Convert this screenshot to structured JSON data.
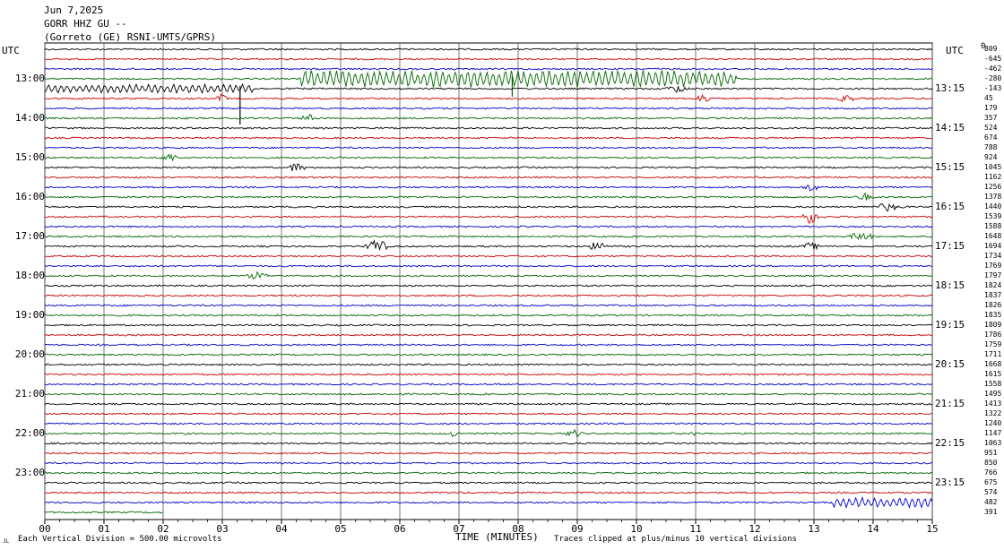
{
  "header": {
    "date": "Jun 7,2025",
    "station": "GORR HHZ GU --",
    "network": "(Gorreto (GE) RSNI-UMTS/GPRS)"
  },
  "utc_left": "UTC",
  "utc_right": "UTC",
  "footer": {
    "xlabel": "TIME (MINUTES)",
    "division": "Each Vertical Division =  500.00 microvolts",
    "clip_note": "Traces clipped at plus/minus 10 vertical divisions",
    "corner_mark": "JL"
  },
  "chart_data": {
    "type": "line",
    "xlabel": "TIME (MINUTES)",
    "xlim": [
      0,
      15
    ],
    "x_ticks": [
      "00",
      "01",
      "02",
      "03",
      "04",
      "05",
      "06",
      "07",
      "08",
      "09",
      "10",
      "11",
      "12",
      "13",
      "14",
      "15"
    ],
    "trace_colors": [
      "#000000",
      "#cc0000",
      "#0000cc",
      "#006600"
    ],
    "left_hour_labels": [
      "13:00",
      "14:00",
      "15:00",
      "16:00",
      "17:00",
      "18:00",
      "19:00",
      "20:00",
      "21:00",
      "22:00",
      "23:00"
    ],
    "right_hour_labels": [
      "13:15",
      "14:15",
      "15:15",
      "16:15",
      "17:15",
      "18:15",
      "19:15",
      "20:15",
      "21:15",
      "22:15",
      "23:15"
    ],
    "top_right_label": "0",
    "right_offsets": [
      "809",
      "-645",
      "-462",
      "-280",
      "-143",
      "45",
      "179",
      "357",
      "524",
      "674",
      "788",
      "924",
      "1045",
      "1162",
      "1256",
      "1378",
      "1440",
      "1539",
      "1588",
      "1648",
      "1694",
      "1734",
      "1769",
      "1797",
      "1824",
      "1837",
      "1826",
      "1835",
      "1809",
      "1786",
      "1759",
      "1711",
      "1668",
      "1615",
      "1558",
      "1495",
      "1413",
      "1322",
      "1240",
      "1147",
      "1063",
      "951",
      "850",
      "766",
      "675",
      "574",
      "482",
      "391"
    ],
    "events": [
      {
        "trace": 3,
        "start_min": 4.3,
        "end_min": 11.7,
        "amp": 10
      },
      {
        "trace": 4,
        "start_min": 0,
        "end_min": 3.5,
        "amp": 5
      },
      {
        "trace": 4,
        "start_min": 10.5,
        "end_min": 10.9,
        "amp": 5
      },
      {
        "trace": 5,
        "start_min": 2.9,
        "end_min": 3.1,
        "amp": 6
      },
      {
        "trace": 5,
        "start_min": 11.0,
        "end_min": 11.3,
        "amp": 6
      },
      {
        "trace": 5,
        "start_min": 13.4,
        "end_min": 13.7,
        "amp": 5
      },
      {
        "trace": 7,
        "start_min": 4.3,
        "end_min": 4.6,
        "amp": 5
      },
      {
        "trace": 11,
        "start_min": 1.9,
        "end_min": 2.3,
        "amp": 5
      },
      {
        "trace": 12,
        "start_min": 4.1,
        "end_min": 4.4,
        "amp": 6
      },
      {
        "trace": 14,
        "start_min": 12.8,
        "end_min": 13.1,
        "amp": 5
      },
      {
        "trace": 15,
        "start_min": 13.7,
        "end_min": 14.0,
        "amp": 5
      },
      {
        "trace": 16,
        "start_min": 14.0,
        "end_min": 14.5,
        "amp": 5
      },
      {
        "trace": 17,
        "start_min": 12.8,
        "end_min": 13.1,
        "amp": 9
      },
      {
        "trace": 19,
        "start_min": 13.6,
        "end_min": 14.0,
        "amp": 6
      },
      {
        "trace": 20,
        "start_min": 5.4,
        "end_min": 5.8,
        "amp": 9
      },
      {
        "trace": 20,
        "start_min": 9.2,
        "end_min": 9.5,
        "amp": 7
      },
      {
        "trace": 20,
        "start_min": 12.8,
        "end_min": 13.1,
        "amp": 5
      },
      {
        "trace": 23,
        "start_min": 3.4,
        "end_min": 3.8,
        "amp": 5
      },
      {
        "trace": 39,
        "start_min": 6.8,
        "end_min": 7.0,
        "amp": 4
      },
      {
        "trace": 39,
        "start_min": 8.8,
        "end_min": 9.1,
        "amp": 5
      },
      {
        "trace": 39,
        "start_min": 10.9,
        "end_min": 11.0,
        "amp": 4
      },
      {
        "trace": 46,
        "start_min": 13.3,
        "end_min": 15.0,
        "amp": 6
      }
    ],
    "spikes": [
      {
        "trace": 3,
        "min": 7.9,
        "amp": 20
      },
      {
        "trace": 4,
        "min": 3.3,
        "amp": 40
      }
    ],
    "last_trace_end_min": 2.0
  }
}
